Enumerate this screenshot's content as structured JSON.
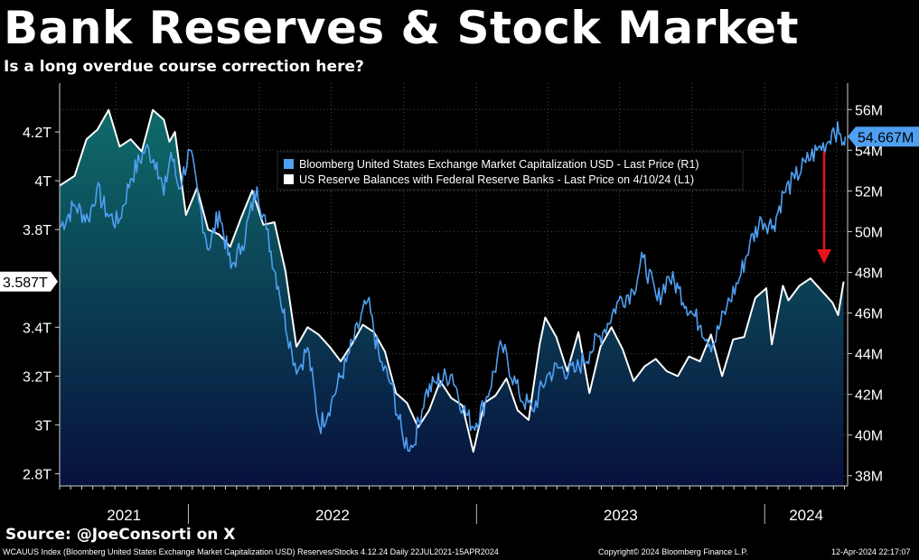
{
  "header": {
    "title": "Bank Reserves & Stock Market",
    "subtitle": "Is a long overdue course correction here?"
  },
  "source": "Source: @JoeConsorti on X",
  "footer": {
    "left": "WCAUUS Index (Bloomberg United States Exchange Market Capitalization USD) Reserves/Stocks 4.12.24  Daily 22JUL2021-15APR2024",
    "center": "Copyright© 2024 Bloomberg Finance L.P.",
    "right": "12-Apr-2024 22:17:07"
  },
  "colors": {
    "background": "#000000",
    "market_cap_line": "#4f9ff2",
    "reserves_line": "#ffffff",
    "area_top": "#0f6b6a",
    "area_bottom": "#07113d",
    "arrow": "#e8141c",
    "grid": "#4a4a4a"
  },
  "chart_data": {
    "type": "line",
    "x_axis": {
      "start": "2021-07-22",
      "end": "2024-04-15",
      "year_labels": [
        "2021",
        "2022",
        "2023",
        "2024"
      ]
    },
    "left_axis": {
      "ylim": [
        2.75,
        4.4
      ],
      "tick_values": [
        2.8,
        3.0,
        3.2,
        3.4,
        3.8,
        4.0,
        4.2
      ],
      "tick_labels": [
        "2.8T",
        "3T",
        "3.2T",
        "3.4T",
        "3.8T",
        "4T",
        "4.2T"
      ]
    },
    "right_axis": {
      "ylim": [
        37.5,
        57.3
      ],
      "tick_values": [
        38,
        40,
        42,
        44,
        46,
        48,
        50,
        52,
        54,
        56
      ],
      "tick_labels": [
        "38M",
        "40M",
        "42M",
        "44M",
        "46M",
        "48M",
        "50M",
        "52M",
        "54M",
        "56M"
      ]
    },
    "last_value_labels": {
      "left": "3.587T",
      "right": "54.667M"
    },
    "legend": {
      "placement": "top-center",
      "entries": [
        "Bloomberg United States Exchange Market Capitalization USD - Last Price (R1)",
        "US Reserve Balances with Federal Reserve Banks - Last Price on 4/10/24 (L1)"
      ]
    },
    "series": [
      {
        "name": "Bloomberg United States Exchange Market Capitalization USD - Last Price (R1)",
        "axis": "right",
        "points": [
          [
            "2021-07-22",
            50.2
          ],
          [
            "2021-08-10",
            51.3
          ],
          [
            "2021-08-27",
            50.6
          ],
          [
            "2021-09-07",
            52.1
          ],
          [
            "2021-09-20",
            50.9
          ],
          [
            "2021-10-04",
            50.4
          ],
          [
            "2021-10-20",
            52.6
          ],
          [
            "2021-11-08",
            54.1
          ],
          [
            "2021-11-22",
            53.4
          ],
          [
            "2021-12-01",
            51.8
          ],
          [
            "2021-12-10",
            53.9
          ],
          [
            "2021-12-20",
            52.1
          ],
          [
            "2022-01-03",
            54.0
          ],
          [
            "2022-01-14",
            51.5
          ],
          [
            "2022-01-27",
            49.1
          ],
          [
            "2022-02-09",
            51.0
          ],
          [
            "2022-02-24",
            48.2
          ],
          [
            "2022-03-10",
            49.3
          ],
          [
            "2022-03-29",
            52.2
          ],
          [
            "2022-04-10",
            50.1
          ],
          [
            "2022-04-25",
            47.3
          ],
          [
            "2022-05-12",
            44.1
          ],
          [
            "2022-05-20",
            43.2
          ],
          [
            "2022-06-01",
            44.3
          ],
          [
            "2022-06-16",
            40.4
          ],
          [
            "2022-07-01",
            41.6
          ],
          [
            "2022-07-20",
            43.6
          ],
          [
            "2022-08-16",
            46.6
          ],
          [
            "2022-09-01",
            43.6
          ],
          [
            "2022-09-15",
            42.5
          ],
          [
            "2022-09-30",
            39.8
          ],
          [
            "2022-10-12",
            39.4
          ],
          [
            "2022-10-28",
            42.0
          ],
          [
            "2022-11-10",
            42.6
          ],
          [
            "2022-12-01",
            43.0
          ],
          [
            "2022-12-15",
            41.3
          ],
          [
            "2022-12-28",
            40.4
          ],
          [
            "2023-01-12",
            41.6
          ],
          [
            "2023-02-02",
            44.4
          ],
          [
            "2023-02-24",
            42.0
          ],
          [
            "2023-03-13",
            41.2
          ],
          [
            "2023-03-31",
            42.9
          ],
          [
            "2023-04-14",
            43.3
          ],
          [
            "2023-05-05",
            43.1
          ],
          [
            "2023-05-25",
            44.1
          ],
          [
            "2023-06-12",
            45.2
          ],
          [
            "2023-06-30",
            46.6
          ],
          [
            "2023-07-18",
            47.1
          ],
          [
            "2023-07-31",
            48.7
          ],
          [
            "2023-08-18",
            46.6
          ],
          [
            "2023-09-01",
            47.8
          ],
          [
            "2023-09-14",
            47.2
          ],
          [
            "2023-09-29",
            46.1
          ],
          [
            "2023-10-12",
            45.4
          ],
          [
            "2023-10-27",
            44.4
          ],
          [
            "2023-11-14",
            46.3
          ],
          [
            "2023-11-30",
            47.7
          ],
          [
            "2023-12-13",
            49.4
          ],
          [
            "2023-12-28",
            50.6
          ],
          [
            "2024-01-12",
            50.3
          ],
          [
            "2024-01-25",
            51.9
          ],
          [
            "2024-02-08",
            52.6
          ],
          [
            "2024-02-22",
            53.4
          ],
          [
            "2024-03-07",
            54.0
          ],
          [
            "2024-03-21",
            54.4
          ],
          [
            "2024-03-28",
            55.1
          ],
          [
            "2024-04-04",
            54.8
          ],
          [
            "2024-04-10",
            54.4
          ],
          [
            "2024-04-12",
            54.667
          ]
        ]
      },
      {
        "name": "US Reserve Balances with Federal Reserve Banks - Last Price on 4/10/24 (L1)",
        "axis": "left",
        "points": [
          [
            "2021-07-22",
            3.98
          ],
          [
            "2021-08-10",
            4.02
          ],
          [
            "2021-08-25",
            4.17
          ],
          [
            "2021-09-08",
            4.21
          ],
          [
            "2021-09-22",
            4.29
          ],
          [
            "2021-10-06",
            4.14
          ],
          [
            "2021-10-20",
            4.17
          ],
          [
            "2021-11-03",
            4.12
          ],
          [
            "2021-11-17",
            4.29
          ],
          [
            "2021-12-01",
            4.25
          ],
          [
            "2021-12-08",
            4.16
          ],
          [
            "2021-12-15",
            4.2
          ],
          [
            "2021-12-29",
            3.86
          ],
          [
            "2022-01-12",
            3.97
          ],
          [
            "2022-01-26",
            3.8
          ],
          [
            "2022-02-09",
            3.78
          ],
          [
            "2022-02-23",
            3.73
          ],
          [
            "2022-03-09",
            3.85
          ],
          [
            "2022-03-23",
            3.96
          ],
          [
            "2022-04-06",
            3.82
          ],
          [
            "2022-04-20",
            3.83
          ],
          [
            "2022-05-04",
            3.63
          ],
          [
            "2022-05-18",
            3.32
          ],
          [
            "2022-06-01",
            3.4
          ],
          [
            "2022-06-15",
            3.37
          ],
          [
            "2022-06-29",
            3.32
          ],
          [
            "2022-07-13",
            3.26
          ],
          [
            "2022-07-27",
            3.33
          ],
          [
            "2022-08-10",
            3.41
          ],
          [
            "2022-08-24",
            3.38
          ],
          [
            "2022-09-07",
            3.3
          ],
          [
            "2022-09-21",
            3.13
          ],
          [
            "2022-10-05",
            3.09
          ],
          [
            "2022-10-19",
            2.99
          ],
          [
            "2022-11-02",
            3.06
          ],
          [
            "2022-11-16",
            3.18
          ],
          [
            "2022-11-30",
            3.11
          ],
          [
            "2022-12-14",
            3.08
          ],
          [
            "2022-12-28",
            2.89
          ],
          [
            "2023-01-11",
            3.09
          ],
          [
            "2023-01-25",
            3.12
          ],
          [
            "2023-02-08",
            3.19
          ],
          [
            "2023-02-22",
            3.06
          ],
          [
            "2023-03-08",
            3.02
          ],
          [
            "2023-03-22",
            3.33
          ],
          [
            "2023-03-29",
            3.44
          ],
          [
            "2023-04-12",
            3.36
          ],
          [
            "2023-04-26",
            3.22
          ],
          [
            "2023-05-10",
            3.38
          ],
          [
            "2023-05-24",
            3.13
          ],
          [
            "2023-06-07",
            3.32
          ],
          [
            "2023-06-21",
            3.4
          ],
          [
            "2023-07-05",
            3.31
          ],
          [
            "2023-07-19",
            3.18
          ],
          [
            "2023-08-02",
            3.24
          ],
          [
            "2023-08-16",
            3.27
          ],
          [
            "2023-08-30",
            3.22
          ],
          [
            "2023-09-13",
            3.2
          ],
          [
            "2023-09-27",
            3.28
          ],
          [
            "2023-10-11",
            3.26
          ],
          [
            "2023-10-25",
            3.37
          ],
          [
            "2023-11-08",
            3.2
          ],
          [
            "2023-11-22",
            3.35
          ],
          [
            "2023-12-06",
            3.36
          ],
          [
            "2023-12-20",
            3.52
          ],
          [
            "2024-01-03",
            3.56
          ],
          [
            "2024-01-10",
            3.33
          ],
          [
            "2024-01-24",
            3.57
          ],
          [
            "2024-01-31",
            3.51
          ],
          [
            "2024-02-14",
            3.57
          ],
          [
            "2024-02-28",
            3.6
          ],
          [
            "2024-03-13",
            3.55
          ],
          [
            "2024-03-27",
            3.5
          ],
          [
            "2024-04-03",
            3.45
          ],
          [
            "2024-04-10",
            3.587
          ]
        ]
      }
    ]
  }
}
